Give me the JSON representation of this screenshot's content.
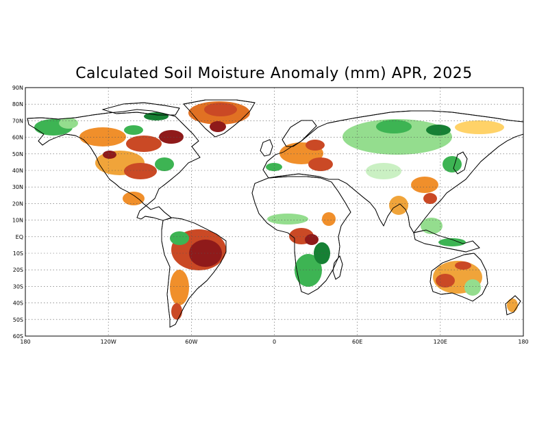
{
  "title": "Calculated Soil Moisture Anomaly (mm) APR, 2025",
  "axes": {
    "lat_ticks": [
      "90N",
      "80N",
      "70N",
      "60N",
      "50N",
      "40N",
      "30N",
      "20N",
      "10N",
      "EQ",
      "10S",
      "20S",
      "30S",
      "40S",
      "50S",
      "60S"
    ],
    "lon_ticks": [
      "180",
      "120W",
      "60W",
      "0",
      "60E",
      "120E",
      "180"
    ]
  },
  "color_scale": {
    "dark_wet": "#0a7a2a",
    "wet": "#33b14a",
    "moist": "#8fdc88",
    "slightly_moist": "#c8f0c0",
    "neutral": "#ffffff",
    "slightly_dry": "#ffd060",
    "dry": "#f08a20",
    "very_dry": "#c8401a",
    "extreme_dry": "#8a0e0e"
  },
  "regions": [
    {
      "name": "Greenland",
      "anomaly": "very_dry"
    },
    {
      "name": "Canada",
      "anomaly": "dry"
    },
    {
      "name": "Alaska",
      "anomaly": "wet"
    },
    {
      "name": "United States",
      "anomaly": "dry"
    },
    {
      "name": "Mexico",
      "anomaly": "dry"
    },
    {
      "name": "Amazon Basin",
      "anomaly": "extreme_dry"
    },
    {
      "name": "Southern South America",
      "anomaly": "dry"
    },
    {
      "name": "Sahara",
      "anomaly": "neutral"
    },
    {
      "name": "Congo Basin",
      "anomaly": "very_dry"
    },
    {
      "name": "Southern Africa",
      "anomaly": "wet"
    },
    {
      "name": "Europe",
      "anomaly": "dry"
    },
    {
      "name": "Siberia",
      "anomaly": "wet"
    },
    {
      "name": "Central Asia",
      "anomaly": "moist"
    },
    {
      "name": "South Asia",
      "anomaly": "dry"
    },
    {
      "name": "East Asia",
      "anomaly": "dry"
    },
    {
      "name": "Southeast Asia",
      "anomaly": "moist"
    },
    {
      "name": "Australia",
      "anomaly": "dry"
    },
    {
      "name": "New Zealand",
      "anomaly": "dry"
    }
  ]
}
